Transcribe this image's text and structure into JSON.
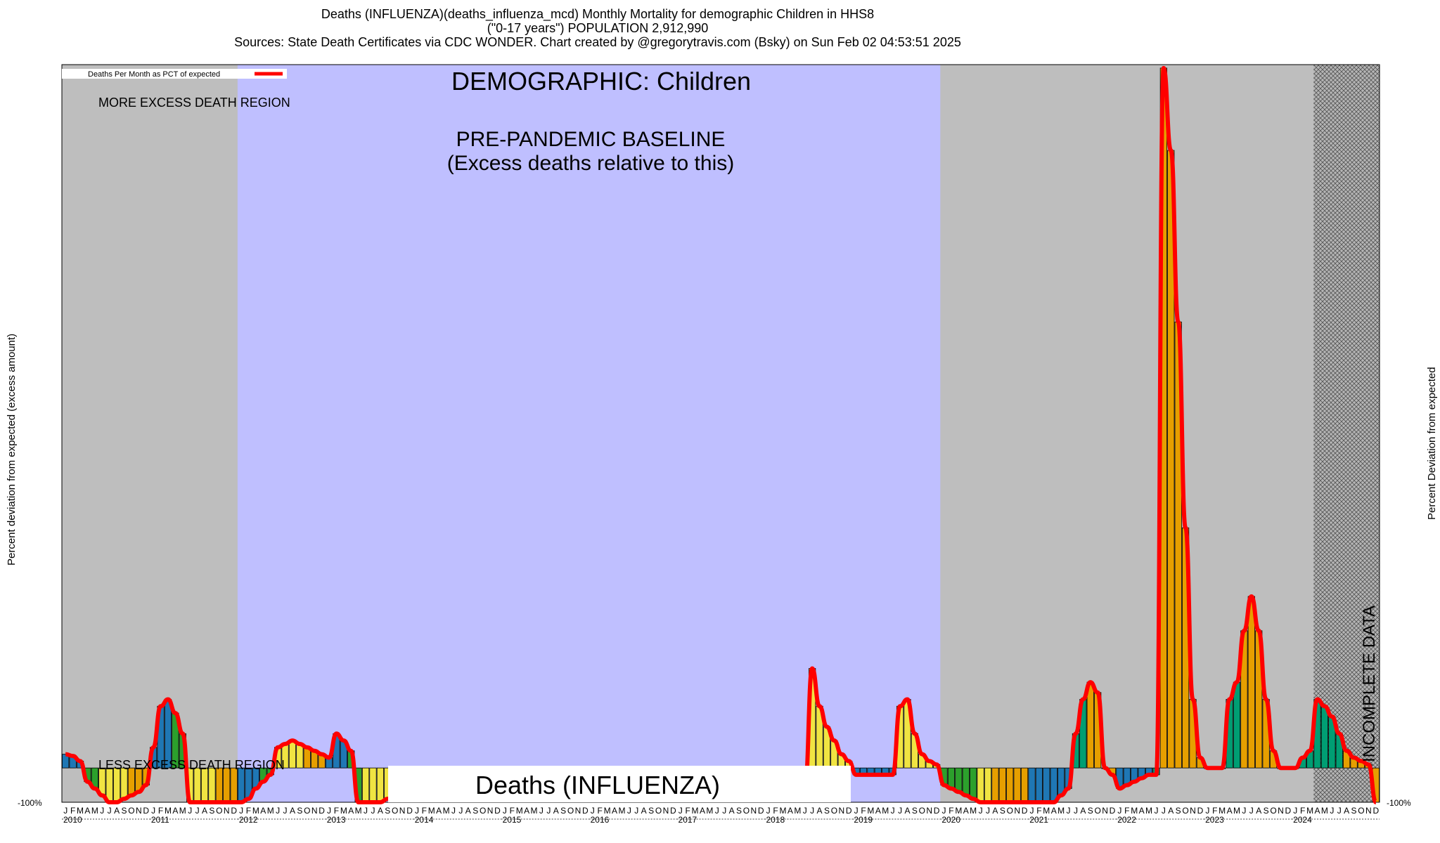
{
  "header": {
    "line1": "Deaths (INFLUENZA)(deaths_influenza_mcd) Monthly Mortality for demographic Children in HHS8",
    "line2": "(\"0-17 years\") POPULATION 2,912,990",
    "line3": "Sources: State Death Certificates via CDC WONDER.                Chart created by @gregorytravis.com (Bsky) on Sun Feb 02 04:53:51 2025"
  },
  "labels": {
    "legend": "Deaths Per Month as PCT of expected",
    "demographic": "DEMOGRAPHIC: Children",
    "baseline_line1": "PRE-PANDEMIC BASELINE",
    "baseline_line2": "(Excess deaths relative to this)",
    "more_excess": "MORE EXCESS DEATH REGION",
    "less_excess": "LESS EXCESS DEATH REGION",
    "cause": "Deaths (INFLUENZA)",
    "incomplete": "INCOMPLETE DATA",
    "y_left": "Percent deviation from expected (excess amount)",
    "y_right": "Percent Deviation from expected",
    "y_min_tick": "-100%"
  },
  "colors": {
    "baseline_region": "#bfbfff",
    "outer_region": "#bebebe",
    "incomplete_region": "#a9a9a9",
    "curve": "#ff0000",
    "winter": "#1f77b4",
    "spring": "#2ca02c",
    "summer": "#f0e442",
    "fall": "#e69f00",
    "teal": "#009e73"
  },
  "chart_data": {
    "type": "bar",
    "title": "Deaths (INFLUENZA)(deaths_influenza_mcd) Monthly Mortality for demographic Children in HHS8",
    "ylabel": "Percent deviation from expected (excess amount)",
    "ylim": [
      -100,
      2050
    ],
    "baseline_years": [
      2012,
      2019
    ],
    "incomplete_from": "2024-04",
    "month_letters": [
      "J",
      "F",
      "M",
      "A",
      "M",
      "J",
      "J",
      "A",
      "S",
      "O",
      "N",
      "D"
    ],
    "years": [
      2010,
      2011,
      2012,
      2013,
      2014,
      2015,
      2016,
      2017,
      2018,
      2019,
      2020,
      2021,
      2022,
      2023,
      2024
    ],
    "bars": [
      {
        "start": "2010-01",
        "values": [
          40,
          35,
          20,
          -40,
          -60,
          -80,
          -100,
          -100,
          -90,
          -80,
          -70,
          -50
        ],
        "colors": [
          "winter",
          "winter",
          "winter",
          "spring",
          "spring",
          "summer",
          "summer",
          "summer",
          "summer",
          "fall",
          "fall",
          "fall"
        ]
      },
      {
        "start": "2011-01",
        "values": [
          60,
          180,
          200,
          160,
          100,
          -100,
          -100,
          -100,
          -100,
          -100,
          -100,
          -100
        ],
        "colors": [
          "winter",
          "winter",
          "winter",
          "spring",
          "spring",
          "summer",
          "summer",
          "summer",
          "summer",
          "fall",
          "fall",
          "fall"
        ]
      },
      {
        "start": "2012-01",
        "values": [
          -100,
          -90,
          -60,
          -40,
          -20,
          60,
          70,
          80,
          70,
          60,
          50,
          40
        ],
        "colors": [
          "winter",
          "winter",
          "winter",
          "spring",
          "spring",
          "summer",
          "summer",
          "summer",
          "summer",
          "fall",
          "fall",
          "fall"
        ]
      },
      {
        "start": "2013-01",
        "values": [
          30,
          100,
          80,
          50,
          -100,
          -100,
          -100,
          -100,
          -90,
          -80,
          -60,
          -40
        ],
        "colors": [
          "winter",
          "winter",
          "winter",
          "spring",
          "spring",
          "summer",
          "summer",
          "summer",
          "summer",
          "fall",
          "fall",
          "fall"
        ]
      },
      {
        "start": "2018-07",
        "values": [
          290,
          180,
          120,
          80,
          40,
          20
        ],
        "colors": [
          "summer",
          "summer",
          "summer",
          "summer",
          "summer",
          "summer"
        ]
      },
      {
        "start": "2019-01",
        "values": [
          -20,
          -20,
          -20,
          -20,
          -20,
          -20,
          180,
          200,
          100,
          40,
          20,
          10
        ],
        "colors": [
          "winter",
          "winter",
          "winter",
          "winter",
          "winter",
          "winter",
          "summer",
          "summer",
          "summer",
          "summer",
          "summer",
          "summer"
        ]
      },
      {
        "start": "2020-01",
        "values": [
          -50,
          -60,
          -70,
          -80,
          -90,
          -100,
          -100,
          -100,
          -100,
          -100,
          -100,
          -100
        ],
        "colors": [
          "spring",
          "spring",
          "spring",
          "spring",
          "spring",
          "summer",
          "summer",
          "fall",
          "fall",
          "fall",
          "fall",
          "fall"
        ]
      },
      {
        "start": "2021-01",
        "values": [
          -100,
          -100,
          -100,
          -100,
          -80,
          -60,
          100,
          200,
          250,
          220,
          0,
          -20
        ],
        "colors": [
          "winter",
          "winter",
          "winter",
          "winter",
          "winter",
          "winter",
          "teal",
          "teal",
          "fall",
          "fall",
          "fall",
          "fall"
        ]
      },
      {
        "start": "2022-01",
        "values": [
          -60,
          -50,
          -40,
          -30,
          -20,
          -20,
          2040,
          1800,
          1300,
          700,
          200,
          30
        ],
        "colors": [
          "winter",
          "winter",
          "winter",
          "winter",
          "winter",
          "teal",
          "fall",
          "fall",
          "fall",
          "fall",
          "fall",
          "fall"
        ]
      },
      {
        "start": "2023-01",
        "values": [
          0,
          0,
          0,
          200,
          250,
          400,
          500,
          400,
          200,
          50,
          0,
          0
        ],
        "colors": [
          "teal",
          "teal",
          "teal",
          "teal",
          "teal",
          "fall",
          "fall",
          "fall",
          "fall",
          "fall",
          "fall",
          "fall"
        ]
      },
      {
        "start": "2024-01",
        "values": [
          0,
          30,
          50,
          200,
          180,
          150,
          100,
          50,
          30,
          20,
          10,
          -100
        ],
        "colors": [
          "teal",
          "teal",
          "teal",
          "teal",
          "teal",
          "teal",
          "teal",
          "fall",
          "fall",
          "fall",
          "fall",
          "fall"
        ]
      }
    ]
  }
}
